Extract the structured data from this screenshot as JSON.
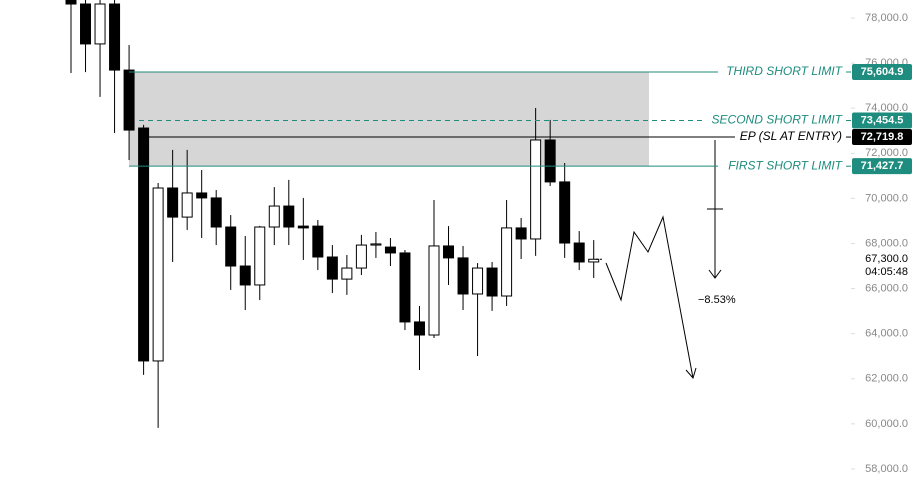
{
  "chart_data": {
    "type": "candlestick",
    "open": [
      79020,
      78620,
      76850,
      78620,
      75690,
      73120,
      62790,
      70460,
      69170,
      70240,
      70020,
      68730,
      67000,
      66160,
      68730,
      69660,
      68770,
      68770,
      67400,
      66420,
      66910,
      67930,
      67840,
      67580,
      64520,
      63940,
      67890,
      67360,
      65760,
      66910,
      65670,
      68690,
      68200,
      72590,
      70730,
      68020,
      67180
    ],
    "high": [
      79240,
      79020,
      79020,
      79020,
      76800,
      73260,
      70680,
      72150,
      72150,
      71260,
      70370,
      69260,
      68330,
      68780,
      70500,
      70820,
      70020,
      69040,
      67930,
      67490,
      68380,
      68510,
      68240,
      67710,
      65230,
      69930,
      68770,
      67890,
      67130,
      67180,
      69930,
      69130,
      74010,
      73480,
      71570,
      68550,
      68150
    ],
    "low": [
      75560,
      75600,
      74500,
      72900,
      71700,
      62170,
      59820,
      67180,
      68600,
      68240,
      67930,
      65940,
      65050,
      65490,
      67930,
      67930,
      67270,
      66820,
      65800,
      65720,
      66600,
      67360,
      67000,
      64160,
      62390,
      63810,
      66160,
      65050,
      63010,
      65010,
      65230,
      67310,
      67450,
      70550,
      67360,
      66820,
      66470
    ],
    "close": [
      78620,
      76850,
      78620,
      75690,
      73030,
      62790,
      70460,
      69170,
      70240,
      70020,
      68730,
      67000,
      66160,
      68730,
      69660,
      68730,
      68690,
      67400,
      66420,
      66910,
      67930,
      67980,
      67580,
      64520,
      63940,
      67890,
      67360,
      65760,
      66910,
      65670,
      68690,
      68200,
      72590,
      70730,
      68020,
      67180,
      67300
    ],
    "up_color": "#ffffff",
    "down_color": "#000000",
    "ylim": [
      57510,
      78798
    ],
    "yticks": [
      {
        "value": 58000,
        "label": "58,000.0"
      },
      {
        "value": 60000,
        "label": "60,000.0"
      },
      {
        "value": 62000,
        "label": "62,000.0"
      },
      {
        "value": 64000,
        "label": "64,000.0"
      },
      {
        "value": 66000,
        "label": "66,000.0"
      },
      {
        "value": 68000,
        "label": "68,000.0"
      },
      {
        "value": 70000,
        "label": "70,000.0"
      },
      {
        "value": 72000,
        "label": "72,000.0"
      },
      {
        "value": 74000,
        "label": "74,000.0"
      },
      {
        "value": 76000,
        "label": "76,000.0"
      },
      {
        "value": 78000,
        "label": "78,000.0"
      }
    ],
    "levels": [
      {
        "name": "THIRD SHORT LIMIT",
        "value": 75604.9,
        "label": "75,604.9",
        "color": "#1e8c7e",
        "style": "solid"
      },
      {
        "name": "SECOND SHORT LIMIT",
        "value": 73454.5,
        "label": "73,454.5",
        "color": "#1e8c7e",
        "style": "dashed"
      },
      {
        "name": "EP (SL AT ENTRY)",
        "value": 72719.8,
        "label": "72,719.8",
        "color": "#000000",
        "style": "solid"
      },
      {
        "name": "FIRST SHORT LIMIT",
        "value": 71427.7,
        "label": "71,427.7",
        "color": "#1e8c7e",
        "style": "solid"
      }
    ],
    "zone_color": "#d6d6d6",
    "last_price": {
      "value": 67300,
      "label": "67,300.0"
    },
    "countdown": "04:05:48",
    "annotation": "−8.53%"
  }
}
